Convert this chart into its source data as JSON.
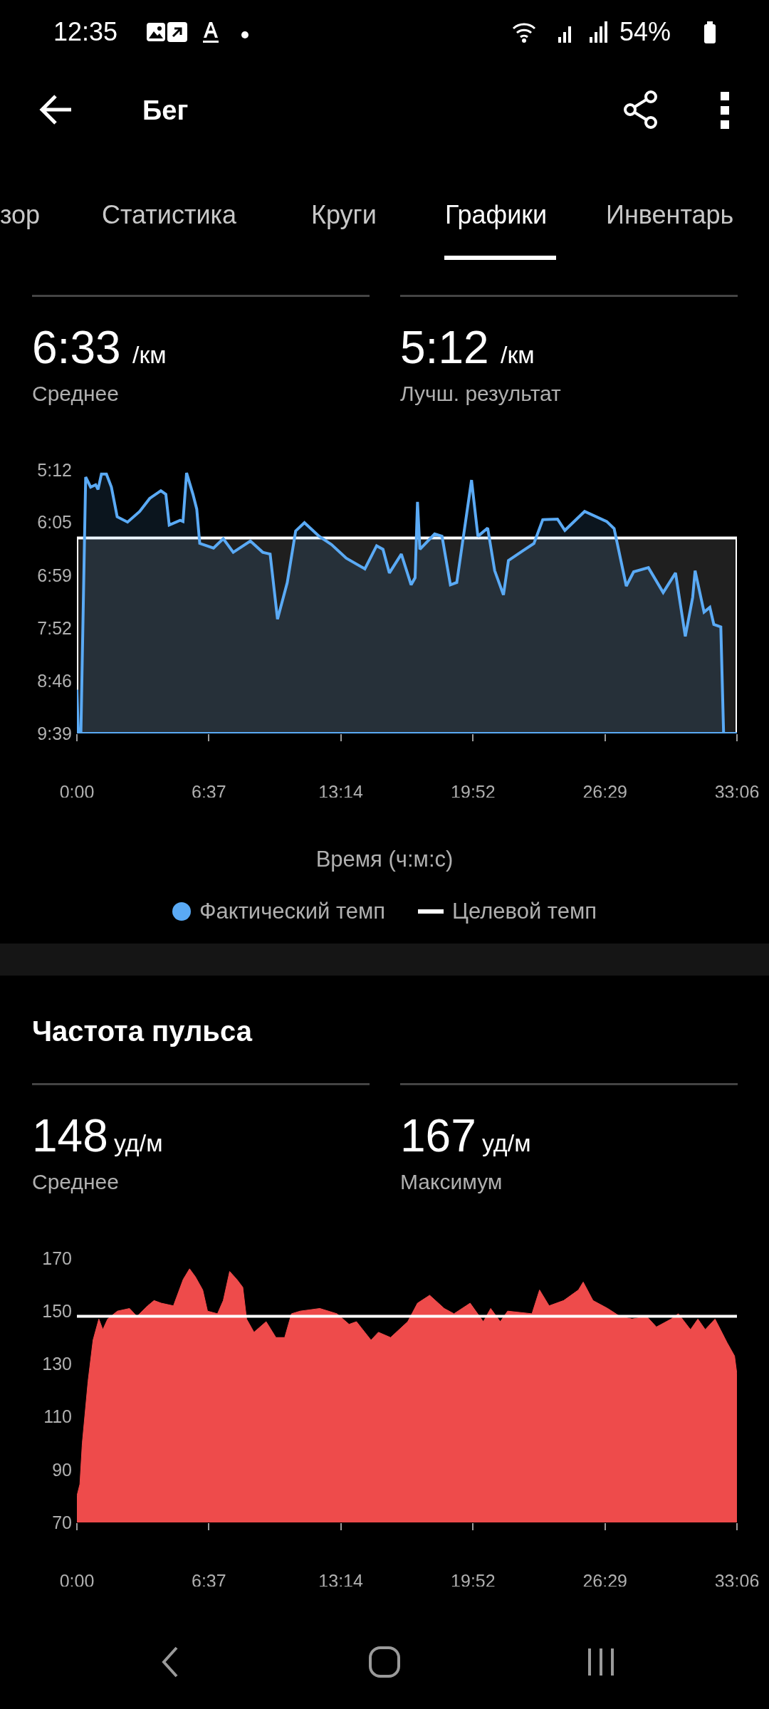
{
  "chart_data": [
    {
      "type": "area",
      "xlabel": "Время (ч:м:с)",
      "legend": "bottom",
      "annotations": [
        "12:35",
        "54%",
        "Бег",
        "зор",
        "Статистика",
        "Круги",
        "Графики",
        "Инвентарь",
        "6:33",
        "/км",
        "Среднее",
        "5:12",
        "/км",
        "Лучш. результат"
      ],
      "xlim": [
        0,
        33.1
      ],
      "xticks": [
        {
          "value": 0,
          "label": "0:00"
        },
        {
          "value": 6.617,
          "label": "6:37"
        },
        {
          "value": 13.233,
          "label": "13:14"
        },
        {
          "value": 19.867,
          "label": "19:52"
        },
        {
          "value": 26.483,
          "label": "26:29"
        },
        {
          "value": 33.1,
          "label": "33:06"
        }
      ],
      "ylim": [
        9.65,
        5.2
      ],
      "yticks": [
        {
          "value": 5.2,
          "label": "5:12"
        },
        {
          "value": 6.083,
          "label": "6:05"
        },
        {
          "value": 6.983,
          "label": "6:59"
        },
        {
          "value": 7.867,
          "label": "7:52"
        },
        {
          "value": 8.767,
          "label": "8:46"
        },
        {
          "value": 9.65,
          "label": "9:39"
        }
      ],
      "series": [
        {
          "name": "Целевой темп",
          "color": "#ffffff",
          "x": [
            0,
            0,
            33.1,
            33.1
          ],
          "values": [
            9.65,
            6.35,
            6.35,
            9.65
          ]
        },
        {
          "name": "Фактический темп",
          "color": "#5aaaf5",
          "x": [
            0,
            0.07,
            0.2,
            0.44,
            0.69,
            0.94,
            1.06,
            1.23,
            1.48,
            1.73,
            2.02,
            2.54,
            3.15,
            3.65,
            4.21,
            4.46,
            4.63,
            5.18,
            5.32,
            5.5,
            5.82,
            6.01,
            6.16,
            6.85,
            7.34,
            7.84,
            8.7,
            9.32,
            9.69,
            10.06,
            10.55,
            10.97,
            11.41,
            12.15,
            12.77,
            13.51,
            14.44,
            15.03,
            15.35,
            15.67,
            16.27,
            16.76,
            16.96,
            17.08,
            17.2,
            17.94,
            18.31,
            18.73,
            19.05,
            19.79,
            20.11,
            20.6,
            20.95,
            21.39,
            21.64,
            22.38,
            22.92,
            23.36,
            24.1,
            24.47,
            25.46,
            26.57,
            26.94,
            27.55,
            27.92,
            28.66,
            29.4,
            30.02,
            30.51,
            30.88,
            31.0,
            31.45,
            31.74,
            31.94,
            32.29,
            32.43,
            33.1
          ],
          "values": [
            8.91,
            9.65,
            9.65,
            5.32,
            5.49,
            5.45,
            5.53,
            5.27,
            5.27,
            5.49,
            5.99,
            6.08,
            5.9,
            5.68,
            5.55,
            5.61,
            6.13,
            6.05,
            6.07,
            5.25,
            5.61,
            5.86,
            6.44,
            6.52,
            6.36,
            6.59,
            6.4,
            6.59,
            6.62,
            7.72,
            7.1,
            6.23,
            6.09,
            6.32,
            6.46,
            6.69,
            6.87,
            6.48,
            6.54,
            6.94,
            6.62,
            7.14,
            7.02,
            5.74,
            6.54,
            6.28,
            6.32,
            7.14,
            7.1,
            5.37,
            6.32,
            6.18,
            6.9,
            7.31,
            6.73,
            6.56,
            6.44,
            6.04,
            6.03,
            6.22,
            5.9,
            6.07,
            6.19,
            7.16,
            6.92,
            6.85,
            7.27,
            6.94,
            8.01,
            7.35,
            6.9,
            7.6,
            7.52,
            7.81,
            7.85,
            9.65,
            9.65
          ]
        }
      ]
    },
    {
      "type": "area",
      "title": "Частота пульса",
      "color": "#ee4b4b",
      "annotations": [
        "148",
        "уд/м",
        "Среднее",
        "167",
        "уд/м",
        "Максимум"
      ],
      "xlim": [
        0,
        33.1
      ],
      "xticks": [
        {
          "value": 0,
          "label": "0:00"
        },
        {
          "value": 6.617,
          "label": "6:37"
        },
        {
          "value": 13.233,
          "label": "13:14"
        },
        {
          "value": 19.867,
          "label": "19:52"
        },
        {
          "value": 26.483,
          "label": "26:29"
        },
        {
          "value": 33.1,
          "label": "33:06"
        }
      ],
      "ylim": [
        70,
        170
      ],
      "yticks": [
        70,
        90,
        110,
        130,
        150,
        170
      ],
      "ref_lines": [
        {
          "axis": "y",
          "value": 148,
          "color": "#ffffff"
        }
      ],
      "x": [
        0,
        0.15,
        0.27,
        0.56,
        0.81,
        1.1,
        1.3,
        1.54,
        2.03,
        2.64,
        3.01,
        3.55,
        3.87,
        4.23,
        4.84,
        5.33,
        5.65,
        5.94,
        6.31,
        6.55,
        7.05,
        7.34,
        7.66,
        8.02,
        8.32,
        8.51,
        8.88,
        9.49,
        9.98,
        10.42,
        10.76,
        11.2,
        12.18,
        13.04,
        13.65,
        14.02,
        14.75,
        15.12,
        15.73,
        16.59,
        17.08,
        17.69,
        18.42,
        18.91,
        19.72,
        20.38,
        20.75,
        21.23,
        21.6,
        22.82,
        23.2,
        23.68,
        24.41,
        25.15,
        25.39,
        25.88,
        26.62,
        27.23,
        27.84,
        28.57,
        29.06,
        29.8,
        30.16,
        30.77,
        31.14,
        31.51,
        32.0,
        32.61,
        32.98,
        33.1
      ],
      "values": [
        80,
        84.5,
        100,
        123.5,
        139,
        147,
        143,
        147,
        150,
        151,
        148,
        152,
        154,
        153,
        152,
        162,
        166,
        163,
        158,
        150,
        149,
        154,
        165,
        162,
        159,
        147,
        142,
        146,
        140,
        140,
        149,
        150,
        151,
        149,
        145,
        146,
        139,
        142,
        140,
        146,
        153,
        156,
        151,
        149,
        153,
        146,
        151,
        146,
        150,
        149,
        158,
        152,
        154,
        158,
        161,
        154,
        151,
        148,
        147,
        148,
        144,
        147,
        149,
        143,
        147,
        143,
        147,
        138,
        133,
        126
      ]
    }
  ]
}
